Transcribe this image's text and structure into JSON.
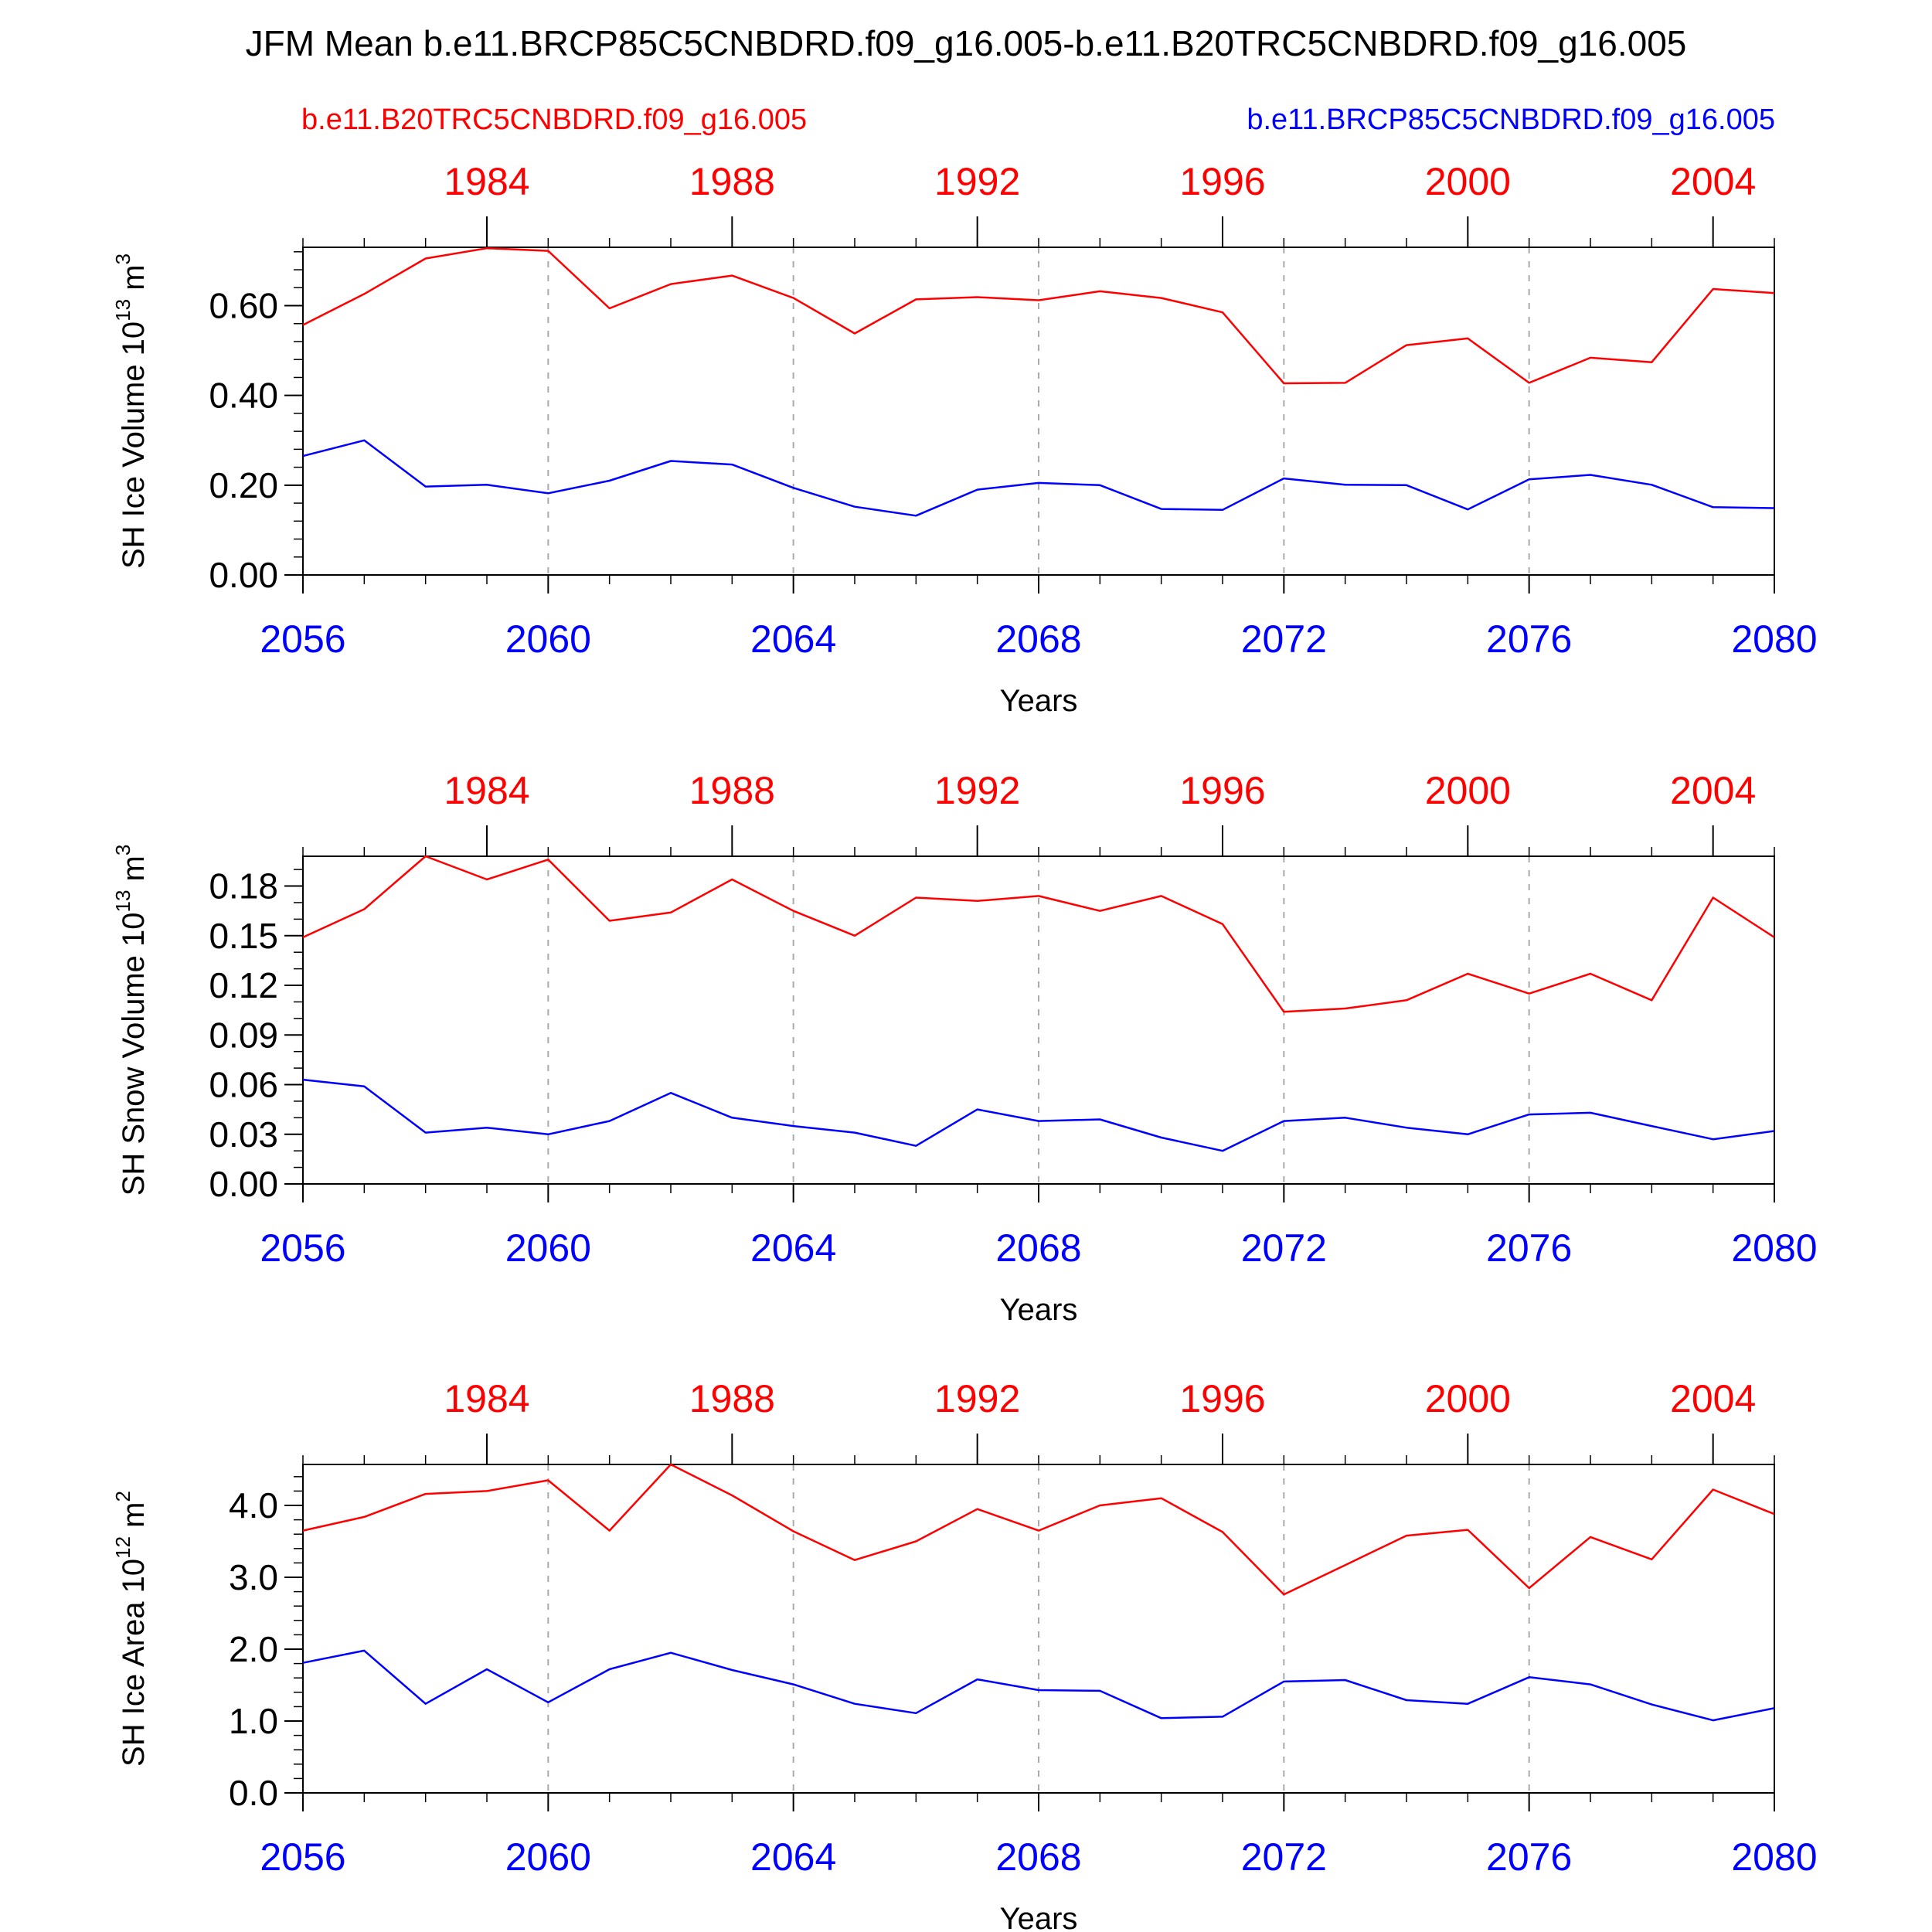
{
  "figure": {
    "title": "JFM Mean b.e11.BRCP85C5CNBDRD.f09_g16.005-b.e11.B20TRC5CNBDRD.f09_g16.005",
    "legend_left": "b.e11.B20TRC5CNBDRD.f09_g16.005",
    "legend_right": "b.e11.BRCP85C5CNBDRD.f09_g16.005",
    "colors": {
      "historical": "#ff0000",
      "future": "#0000ff",
      "axis": "#000000",
      "grid": "#aaaaaa"
    }
  },
  "chart_data": [
    {
      "type": "line",
      "ylabel_main": "SH Ice Volume 10",
      "ylabel_exp": "13",
      "ylabel_unit": " m",
      "ylabel_unit_exp": "3",
      "xlabel": "Years",
      "xlim": [
        2056,
        2080
      ],
      "ylim": [
        0,
        0.73
      ],
      "ytick_values": [
        0,
        0.2,
        0.4,
        0.6
      ],
      "ytick_labels": [
        "0.00",
        "0.20",
        "0.40",
        "0.60"
      ],
      "yminor_step": 0.04,
      "x_ticks": [
        2056,
        2060,
        2064,
        2068,
        2072,
        2076,
        2080
      ],
      "x_tick_labels": [
        "2056",
        "2060",
        "2064",
        "2068",
        "2072",
        "2076",
        "2080"
      ],
      "top_ticks": [
        1984,
        1988,
        1992,
        1996,
        2000,
        2004
      ],
      "top_tick_labels": [
        "1984",
        "1988",
        "1992",
        "1996",
        "2000",
        "2004"
      ],
      "top_axis_offset": 75,
      "grid_x": [
        2060,
        2064,
        2068,
        2072,
        2076
      ],
      "x": [
        2056,
        2057,
        2058,
        2059,
        2060,
        2061,
        2062,
        2063,
        2064,
        2065,
        2066,
        2067,
        2068,
        2069,
        2070,
        2071,
        2072,
        2073,
        2074,
        2075,
        2076,
        2077,
        2078,
        2079,
        2080
      ],
      "series": [
        {
          "name": "b.e11.B20TRC5CNBDRD.f09_g16.005",
          "color": "#ff0000",
          "values": [
            0.557,
            0.626,
            0.705,
            0.728,
            0.722,
            0.594,
            0.648,
            0.667,
            0.617,
            0.538,
            0.614,
            0.619,
            0.612,
            0.632,
            0.617,
            0.585,
            0.427,
            0.428,
            0.512,
            0.527,
            0.428,
            0.484,
            0.474,
            0.637,
            0.628
          ]
        },
        {
          "name": "b.e11.BRCP85C5CNBDRD.f09_g16.005",
          "color": "#0000ff",
          "values": [
            0.265,
            0.3,
            0.197,
            0.201,
            0.182,
            0.21,
            0.254,
            0.246,
            0.194,
            0.152,
            0.132,
            0.19,
            0.205,
            0.2,
            0.147,
            0.145,
            0.215,
            0.201,
            0.2,
            0.146,
            0.213,
            0.223,
            0.201,
            0.151,
            0.149
          ]
        }
      ]
    },
    {
      "type": "line",
      "ylabel_main": "SH Snow Volume 10",
      "ylabel_exp": "13",
      "ylabel_unit": " m",
      "ylabel_unit_exp": "3",
      "xlabel": "Years",
      "xlim": [
        2056,
        2080
      ],
      "ylim": [
        0,
        0.198
      ],
      "ytick_values": [
        0,
        0.03,
        0.06,
        0.09,
        0.12,
        0.15,
        0.18
      ],
      "ytick_labels": [
        "0.00",
        "0.03",
        "0.06",
        "0.09",
        "0.12",
        "0.15",
        "0.18"
      ],
      "yminor_step": 0.01,
      "x_ticks": [
        2056,
        2060,
        2064,
        2068,
        2072,
        2076,
        2080
      ],
      "x_tick_labels": [
        "2056",
        "2060",
        "2064",
        "2068",
        "2072",
        "2076",
        "2080"
      ],
      "top_ticks": [
        1984,
        1988,
        1992,
        1996,
        2000,
        2004
      ],
      "top_tick_labels": [
        "1984",
        "1988",
        "1992",
        "1996",
        "2000",
        "2004"
      ],
      "top_axis_offset": 75,
      "grid_x": [
        2060,
        2064,
        2068,
        2072,
        2076
      ],
      "x": [
        2056,
        2057,
        2058,
        2059,
        2060,
        2061,
        2062,
        2063,
        2064,
        2065,
        2066,
        2067,
        2068,
        2069,
        2070,
        2071,
        2072,
        2073,
        2074,
        2075,
        2076,
        2077,
        2078,
        2079,
        2080
      ],
      "series": [
        {
          "name": "b.e11.B20TRC5CNBDRD.f09_g16.005",
          "color": "#ff0000",
          "values": [
            0.149,
            0.166,
            0.198,
            0.184,
            0.196,
            0.159,
            0.164,
            0.184,
            0.165,
            0.15,
            0.173,
            0.171,
            0.174,
            0.165,
            0.174,
            0.157,
            0.104,
            0.106,
            0.111,
            0.127,
            0.115,
            0.127,
            0.111,
            0.173,
            0.149
          ]
        },
        {
          "name": "b.e11.BRCP85C5CNBDRD.f09_g16.005",
          "color": "#0000ff",
          "values": [
            0.063,
            0.059,
            0.031,
            0.034,
            0.03,
            0.038,
            0.055,
            0.04,
            0.035,
            0.031,
            0.023,
            0.045,
            0.038,
            0.039,
            0.028,
            0.02,
            0.038,
            0.04,
            0.034,
            0.03,
            0.042,
            0.043,
            0.035,
            0.027,
            0.032
          ]
        }
      ]
    },
    {
      "type": "line",
      "ylabel_main": "SH Ice Area 10",
      "ylabel_exp": "12",
      "ylabel_unit": " m",
      "ylabel_unit_exp": "2",
      "xlabel": "Years",
      "xlim": [
        2056,
        2080
      ],
      "ylim": [
        0,
        4.57
      ],
      "ytick_values": [
        0,
        1,
        2,
        3,
        4
      ],
      "ytick_labels": [
        "0.0",
        "1.0",
        "2.0",
        "3.0",
        "4.0"
      ],
      "yminor_step": 0.2,
      "x_ticks": [
        2056,
        2060,
        2064,
        2068,
        2072,
        2076,
        2080
      ],
      "x_tick_labels": [
        "2056",
        "2060",
        "2064",
        "2068",
        "2072",
        "2076",
        "2080"
      ],
      "top_ticks": [
        1984,
        1988,
        1992,
        1996,
        2000,
        2004
      ],
      "top_tick_labels": [
        "1984",
        "1988",
        "1992",
        "1996",
        "2000",
        "2004"
      ],
      "top_axis_offset": 75,
      "grid_x": [
        2060,
        2064,
        2068,
        2072,
        2076
      ],
      "x": [
        2056,
        2057,
        2058,
        2059,
        2060,
        2061,
        2062,
        2063,
        2064,
        2065,
        2066,
        2067,
        2068,
        2069,
        2070,
        2071,
        2072,
        2073,
        2074,
        2075,
        2076,
        2077,
        2078,
        2079,
        2080
      ],
      "series": [
        {
          "name": "b.e11.B20TRC5CNBDRD.f09_g16.005",
          "color": "#ff0000",
          "values": [
            3.65,
            3.84,
            4.16,
            4.2,
            4.35,
            3.65,
            4.57,
            4.14,
            3.64,
            3.24,
            3.5,
            3.95,
            3.65,
            4.0,
            4.1,
            3.63,
            2.76,
            3.17,
            3.58,
            3.66,
            2.85,
            3.56,
            3.25,
            4.22,
            3.88
          ]
        },
        {
          "name": "b.e11.BRCP85C5CNBDRD.f09_g16.005",
          "color": "#0000ff",
          "values": [
            1.81,
            1.98,
            1.24,
            1.72,
            1.26,
            1.72,
            1.95,
            1.71,
            1.51,
            1.24,
            1.11,
            1.58,
            1.43,
            1.42,
            1.04,
            1.06,
            1.55,
            1.57,
            1.29,
            1.24,
            1.61,
            1.51,
            1.23,
            1.01,
            1.18
          ]
        }
      ]
    }
  ]
}
